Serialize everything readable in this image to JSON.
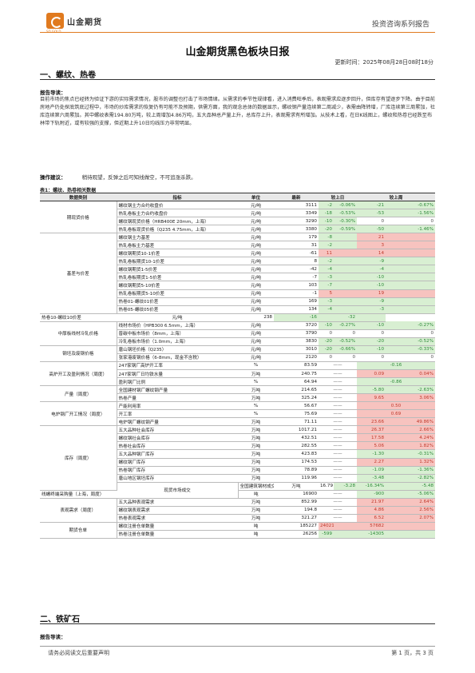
{
  "header": {
    "logo_cn": "山金期货",
    "logo_en": "SD GOLD",
    "series": "投资咨询系列报告"
  },
  "title": "山金期货黑色板块日报",
  "update_time": "更新时间：2025年08月28日08时18分",
  "section1": {
    "heading": "一、螺纹、热卷",
    "guide_label": "报告导读：",
    "guide_text": "目前市场的焦点已经转为验证下游的实际需求情况，股市的调整也打击了市场情绪。从需求的季节性规律看，进入消费旺季后，表观需求应逐步回升，但库存有望逐步下降。由于目前房地产仍处探底筑底过程中，市场的炒库需求的恢复仍有可能不及预期，供需方面，我的观念总体的数据显示，螺纹钢产量连续第二周减少，表需由降转增，厂库连续第三周累加，社库连续第六周累加。其中螺纹表需194.80万吨，较上周增加4.86万吨，五大品种总产量上升，总库存上升，表观需求有所增加。从技术上看，在日K线图上，螺纹和热卷已经跌至布林带下轨附近，或有较强的支撑，但近期上升10日均线压力非常明显。",
    "op_label": "操作建议：",
    "op_text": "稍待观望，反弹之后可知线做空，不可追涨杀跌。"
  },
  "table": {
    "caption": "表1：螺纹、热卷相关数据",
    "headers": [
      "数据类别",
      "指标",
      "单位",
      "最新",
      "较上日",
      "较上周"
    ],
    "rows": [
      {
        "cat": "期现货价格",
        "span": 4,
        "name": "螺纹钢主力合约收盘价",
        "unit": "元/吨",
        "latest": "3111",
        "d1": "-2",
        "d1p": "-0.06%",
        "w1": "-21",
        "w1p": "-0.67%",
        "d": "dn",
        "w": "dn"
      },
      {
        "name": "热轧卷板主力合约收盘价",
        "unit": "元/吨",
        "latest": "3349",
        "d1": "-18",
        "d1p": "-0.53%",
        "w1": "-53",
        "w1p": "-1.56%",
        "d": "dn",
        "w": "dn"
      },
      {
        "name": "螺纹钢现货价格（HRB400E 20mm，上海）",
        "unit": "元/吨",
        "latest": "3290",
        "d1": "-10",
        "d1p": "-0.30%",
        "w1": "0",
        "w1p": "0",
        "d": "dn",
        "w": "neu"
      },
      {
        "name": "热轧卷板现货价格（Q235 4.75mm，上海）",
        "unit": "元/吨",
        "latest": "3380",
        "d1": "-20",
        "d1p": "-0.59%",
        "w1": "-50",
        "w1p": "-1.46%",
        "d": "dn",
        "w": "dn"
      },
      {
        "cat": "基差与价差",
        "span": 10,
        "name": "螺纹钢主力基差",
        "unit": "元/吨",
        "latest": "179",
        "d1": "-8",
        "d1p": "",
        "w1": "21",
        "w1p": "",
        "d": "dn",
        "w": "up"
      },
      {
        "name": "热轧卷板主力基差",
        "unit": "元/吨",
        "latest": "31",
        "d1": "-2",
        "d1p": "",
        "w1": "3",
        "w1p": "",
        "d": "dn",
        "w": "up"
      },
      {
        "name": "螺纹钢期货10-1价差",
        "unit": "元/吨",
        "latest": "-61",
        "d1": "11",
        "d1p": "",
        "w1": "14",
        "w1p": "",
        "d": "up",
        "w": "up"
      },
      {
        "name": "热轧卷板期货10-1价差",
        "unit": "元/吨",
        "latest": "8",
        "d1": "-2",
        "d1p": "",
        "w1": "-9",
        "w1p": "",
        "d": "dn",
        "w": "dn"
      },
      {
        "name": "螺纹钢期货1-5价差",
        "unit": "元/吨",
        "latest": "-42",
        "d1": "-4",
        "d1p": "",
        "w1": "-4",
        "w1p": "",
        "d": "dn",
        "w": "dn"
      },
      {
        "name": "热轧卷板期货1-5价差",
        "unit": "元/吨",
        "latest": "-7",
        "d1": "-3",
        "d1p": "",
        "w1": "-10",
        "w1p": "",
        "d": "dn",
        "w": "dn"
      },
      {
        "name": "螺纹钢期货5-10价差",
        "unit": "元/吨",
        "latest": "103",
        "d1": "-7",
        "d1p": "",
        "w1": "-10",
        "w1p": "",
        "d": "dn",
        "w": "dn"
      },
      {
        "name": "热轧卷板期货5-10价差",
        "unit": "元/吨",
        "latest": "-1",
        "d1": "5",
        "d1p": "",
        "w1": "19",
        "w1p": "",
        "d": "up",
        "w": "up"
      },
      {
        "name": "热卷01-螺纹01价差",
        "unit": "元/吨",
        "latest": "169",
        "d1": "-3",
        "d1p": "",
        "w1": "-9",
        "w1p": "",
        "d": "dn",
        "w": "dn"
      },
      {
        "name": "热卷05-螺纹05价差",
        "unit": "元/吨",
        "latest": "134",
        "d1": "-4",
        "d1p": "",
        "w1": "-3",
        "w1p": "",
        "d": "dn",
        "w": "dn"
      },
      {
        "name": "热卷10-螺纹10价差",
        "unit": "元/吨",
        "latest": "238",
        "d1": "-16",
        "d1p": "",
        "w1": "-32",
        "w1p": "",
        "d": "dn",
        "w": "dn"
      },
      {
        "cat": "中厚板线材冷轧价格",
        "span": 3,
        "name": "线材市场价（HPB300 6.5mm，上海）",
        "unit": "元/吨",
        "latest": "3720",
        "d1": "-10",
        "d1p": "-0.27%",
        "w1": "-10",
        "w1p": "-0.27%",
        "d": "dn",
        "w": "dn"
      },
      {
        "name": "普碳中板市场价（8mm，上海）",
        "unit": "元/吨",
        "latest": "3790",
        "d1": "0",
        "d1p": "0",
        "w1": "0",
        "w1p": "0",
        "d": "neu",
        "w": "neu"
      },
      {
        "name": "冷轧卷板市场价（1.0mm，上海）",
        "unit": "元/吨",
        "latest": "3830",
        "d1": "-20",
        "d1p": "-0.52%",
        "w1": "-20",
        "w1p": "-0.52%",
        "d": "dn",
        "w": "dn"
      },
      {
        "cat": "钢坯及废钢价格",
        "span": 2,
        "name": "唐山钢坯价格（Q235）",
        "unit": "元/吨",
        "latest": "3010",
        "d1": "-20",
        "d1p": "-0.66%",
        "w1": "-10",
        "w1p": "-0.33%",
        "d": "dn",
        "w": "dn"
      },
      {
        "name": "张家港废钢价格（6-8mm，现金不含税）",
        "unit": "元/吨",
        "latest": "2120",
        "d1": "0",
        "d1p": "0",
        "w1": "0",
        "w1p": "0",
        "d": "neu",
        "w": "neu"
      },
      {
        "cat": "高炉开工及盈利情况（周度）",
        "span": 3,
        "name": "247家钢厂高炉开工率",
        "unit": "%",
        "latest": "83.59",
        "d1": "——",
        "d1p": "",
        "w1": "-0.16",
        "w1p": "",
        "d": "neu",
        "w": "dn",
        "wspan": true
      },
      {
        "name": "247家钢厂日均铁水量",
        "unit": "万吨",
        "latest": "240.75",
        "d1": "——",
        "d1p": "",
        "w1": "0.09",
        "w1p": "0.04%",
        "d": "neu",
        "w": "up"
      },
      {
        "name": "盈利钢厂比例",
        "unit": "%",
        "latest": "64.94",
        "d1": "——",
        "d1p": "",
        "w1": "-0.86",
        "w1p": "",
        "d": "neu",
        "w": "dn",
        "wspan": true
      },
      {
        "cat": "产量（周度）",
        "span": 2,
        "name": "全国建材钢厂螺纹钢产量",
        "unit": "万吨",
        "latest": "214.65",
        "d1": "——",
        "d1p": "",
        "w1": "-5.80",
        "w1p": "-2.63%",
        "d": "neu",
        "w": "dn"
      },
      {
        "name": "热卷产量",
        "unit": "万吨",
        "latest": "325.24",
        "d1": "——",
        "d1p": "",
        "w1": "9.65",
        "w1p": "3.06%",
        "d": "neu",
        "w": "up"
      },
      {
        "cat": "电炉钢厂开工情况（周度）",
        "span": 3,
        "name": "产能利用率",
        "unit": "%",
        "latest": "56.67",
        "d1": "——",
        "d1p": "",
        "w1": "0.50",
        "w1p": "",
        "d": "neu",
        "w": "up",
        "wspan": true
      },
      {
        "name": "开工率",
        "unit": "%",
        "latest": "75.69",
        "d1": "——",
        "d1p": "",
        "w1": "0.69",
        "w1p": "",
        "d": "neu",
        "w": "up",
        "wspan": true
      },
      {
        "name": "电炉钢厂螺纹钢产量",
        "unit": "万吨",
        "latest": "71.11",
        "d1": "——",
        "d1p": "",
        "w1": "23.66",
        "w1p": "49.86%",
        "d": "neu",
        "w": "up"
      },
      {
        "cat": "库存（周度）",
        "span": 8,
        "name": "五大品种社会库存",
        "unit": "万吨",
        "latest": "1017.21",
        "d1": "——",
        "d1p": "",
        "w1": "26.37",
        "w1p": "2.66%",
        "d": "neu",
        "w": "up"
      },
      {
        "name": "螺纹钢社会库存",
        "unit": "万吨",
        "latest": "432.51",
        "d1": "——",
        "d1p": "",
        "w1": "17.58",
        "w1p": "4.24%",
        "d": "neu",
        "w": "up"
      },
      {
        "name": "热卷社会库存",
        "unit": "万吨",
        "latest": "282.55",
        "d1": "——",
        "d1p": "",
        "w1": "5.06",
        "w1p": "1.82%",
        "d": "neu",
        "w": "up"
      },
      {
        "name": "五大品种钢厂库存",
        "unit": "万吨",
        "latest": "423.83",
        "d1": "——",
        "d1p": "",
        "w1": "-1.30",
        "w1p": "-0.31%",
        "d": "neu",
        "w": "dn"
      },
      {
        "name": "螺纹钢厂库存",
        "unit": "万吨",
        "latest": "174.53",
        "d1": "——",
        "d1p": "",
        "w1": "2.27",
        "w1p": "1.32%",
        "d": "neu",
        "w": "up"
      },
      {
        "name": "热卷钢厂库存",
        "unit": "万吨",
        "latest": "78.89",
        "d1": "——",
        "d1p": "",
        "w1": "-1.09",
        "w1p": "-1.36%",
        "d": "neu",
        "w": "dn"
      },
      {
        "name": "唐山地区钢坯库存",
        "unit": "万吨",
        "latest": "119.96",
        "d1": "——",
        "d1p": "",
        "w1": "-3.48",
        "w1p": "-2.82%",
        "d": "neu",
        "w": "dn"
      },
      {
        "cat": "现货市场成交",
        "span": 2,
        "name": "全国建筑钢材成交量（7天移动均值，钢银）",
        "unit": "万吨",
        "latest": "16.79",
        "d1": "-3.28",
        "d1p": "-16.34%",
        "w1": "-5.48",
        "w1p": "-24.60%",
        "d": "dn",
        "w": "dn"
      },
      {
        "name": "线螺终端采购量（上海，周度）",
        "unit": "吨",
        "latest": "16900",
        "d1": "——",
        "d1p": "",
        "w1": "-900",
        "w1p": "-5.06%",
        "d": "neu",
        "w": "dn"
      },
      {
        "cat": "表观需求（周度）",
        "span": 3,
        "name": "五大品种表观需求",
        "unit": "万吨",
        "latest": "852.99",
        "d1": "——",
        "d1p": "",
        "w1": "21.97",
        "w1p": "2.64%",
        "d": "neu",
        "w": "up"
      },
      {
        "name": "螺纹钢表观需求",
        "unit": "万吨",
        "latest": "194.8",
        "d1": "——",
        "d1p": "",
        "w1": "4.86",
        "w1p": "2.56%",
        "d": "neu",
        "w": "up"
      },
      {
        "name": "热卷表观需求",
        "unit": "万吨",
        "latest": "321.27",
        "d1": "——",
        "d1p": "",
        "w1": "6.52",
        "w1p": "2.07%",
        "d": "neu",
        "w": "up"
      },
      {
        "cat": "期货仓单",
        "span": 2,
        "name": "螺纹注册仓单数量",
        "unit": "吨",
        "latest": "185227",
        "d1": "24021",
        "d1p": "",
        "w1": "57682",
        "w1p": "",
        "d": "up",
        "w": "up"
      },
      {
        "name": "热卷注册仓单数量",
        "unit": "吨",
        "latest": "26256",
        "d1": "-599",
        "d1p": "",
        "w1": "-14305",
        "w1p": "",
        "d": "dn",
        "w": "dn"
      }
    ]
  },
  "section2": {
    "heading": "二、铁矿石",
    "guide_label": "报告导读："
  },
  "footer": {
    "left": "请务必阅读文后重要声明",
    "right": "第 1 页，共 3 页"
  }
}
